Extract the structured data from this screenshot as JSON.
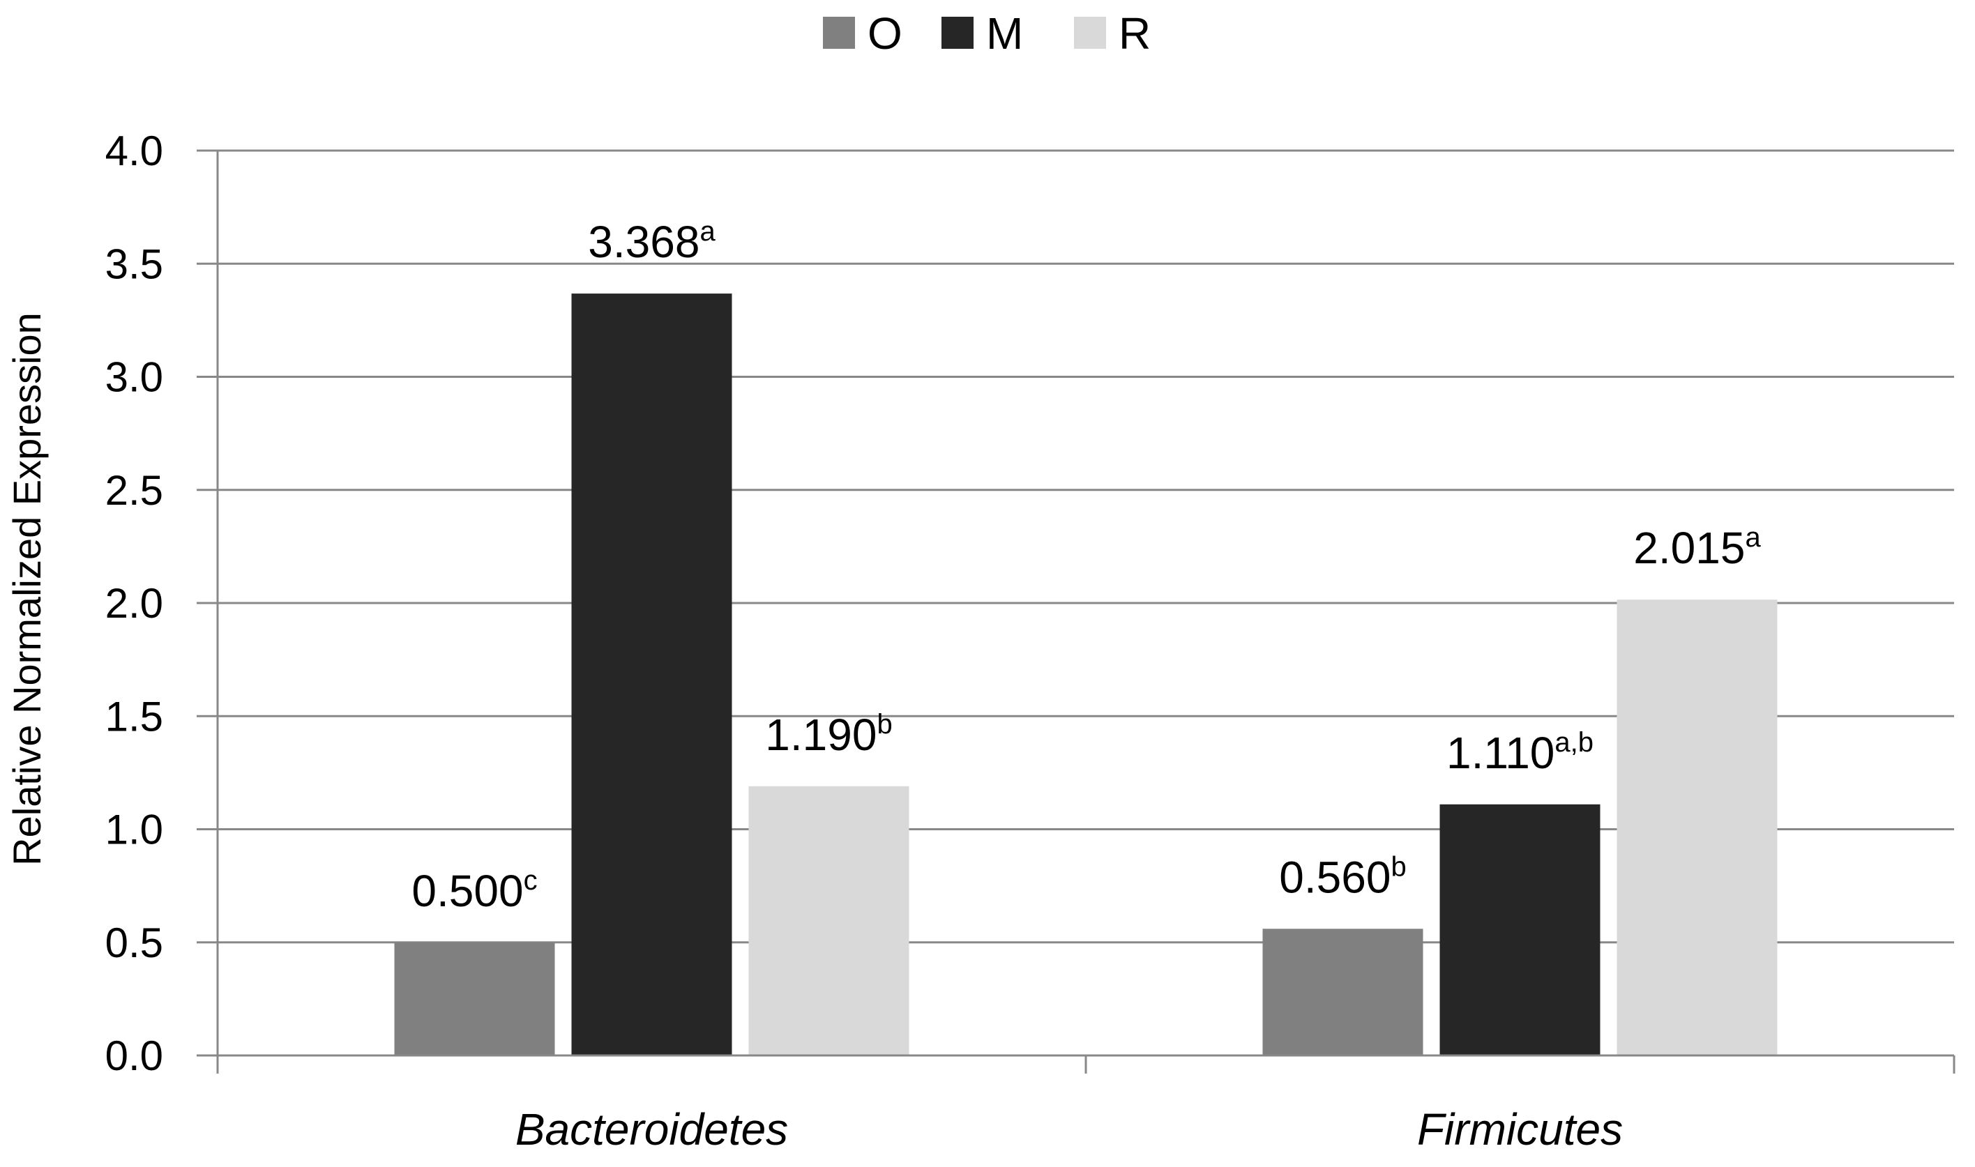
{
  "chart_data": {
    "type": "bar",
    "ylabel": "Relative Normalized Expression",
    "ylim": [
      0,
      4.0
    ],
    "yticks": [
      "0.0",
      "0.5",
      "1.0",
      "1.5",
      "2.0",
      "2.5",
      "3.0",
      "3.5",
      "4.0"
    ],
    "grid": true,
    "legend_position": "top-center",
    "categories": [
      "Bacteroidetes",
      "Firmicutes"
    ],
    "series": [
      {
        "name": "O",
        "color": "#808080",
        "values": [
          0.5,
          0.56
        ],
        "labels": [
          "0.500",
          "0.560"
        ],
        "sup": [
          "c",
          "b"
        ]
      },
      {
        "name": "M",
        "color": "#262626",
        "values": [
          3.368,
          1.11
        ],
        "labels": [
          "3.368",
          "1.110"
        ],
        "sup": [
          "a",
          "a,b"
        ]
      },
      {
        "name": "R",
        "color": "#d9d9d9",
        "values": [
          1.19,
          2.015
        ],
        "labels": [
          "1.190",
          "2.015"
        ],
        "sup": [
          "b",
          "a"
        ]
      }
    ]
  }
}
